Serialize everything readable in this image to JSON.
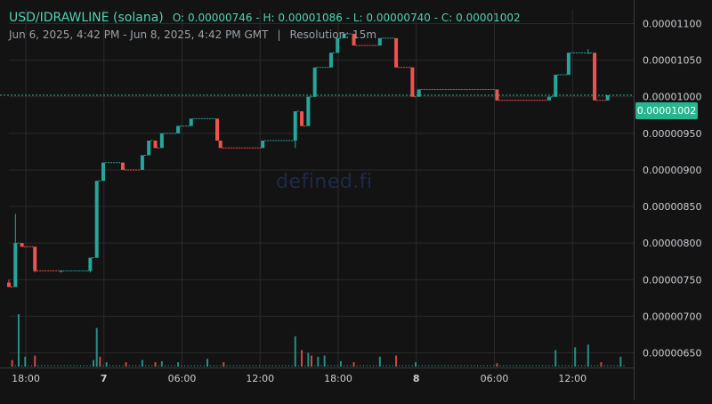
{
  "header": {
    "pair": "USD/IDRAWLINE (solana)",
    "ohlc": "O: 0.00000746 - H: 0.00001086 - L: 0.00000740 - C: 0.00001002",
    "range": "Jun 6, 2025, 4:42 PM - Jun 8, 2025, 4:42 PM GMT",
    "separator": "|",
    "resolution": "Resolution: 15m"
  },
  "watermark": "defined.fi",
  "colors": {
    "background": "#131313",
    "grid": "#2a2a2a",
    "up": "#26a69a",
    "down": "#ef5350",
    "price_line": "#26b58f",
    "axis_text": "#c9ccd1"
  },
  "chart_data": {
    "type": "candlestick",
    "y_axis": {
      "ticks": [
        6.5e-06,
        7e-06,
        7.5e-06,
        8e-06,
        8.5e-06,
        9e-06,
        9.5e-06,
        1e-05,
        1.05e-05,
        1.1e-05
      ],
      "tick_labels": [
        "0.00000650",
        "0.00000700",
        "0.00000750",
        "0.00000800",
        "0.00000850",
        "0.00000900",
        "0.00000950",
        "0.00001000",
        "0.00001050",
        "0.00001100"
      ],
      "range": [
        6.3e-06,
        1.12e-05
      ],
      "current_price": 1.002e-05,
      "current_price_label": "0.00001002"
    },
    "x_axis": {
      "tick_labels": [
        "18:00",
        "7",
        "06:00",
        "12:00",
        "18:00",
        "8",
        "06:00",
        "12:00"
      ],
      "tick_hours": [
        1.3,
        7.3,
        13.3,
        19.3,
        25.3,
        31.3,
        37.3,
        43.3
      ],
      "bold_labels": [
        "7",
        "8"
      ],
      "hour_range": [
        0,
        48
      ]
    },
    "candles": [
      {
        "t": 0.0,
        "o": 7.46e-06,
        "c": 7.4e-06,
        "h": 7.5e-06,
        "l": 7.4e-06
      },
      {
        "t": 0.5,
        "o": 7.4e-06,
        "c": 8e-06,
        "h": 8.4e-06,
        "l": 7.4e-06
      },
      {
        "t": 1.0,
        "o": 8e-06,
        "c": 7.95e-06,
        "h": 8e-06,
        "l": 7.95e-06
      },
      {
        "t": 2.0,
        "o": 7.95e-06,
        "c": 7.62e-06,
        "h": 7.95e-06,
        "l": 7.6e-06
      },
      {
        "t": 4.0,
        "o": 7.62e-06,
        "c": 7.62e-06,
        "h": 7.63e-06,
        "l": 7.6e-06
      },
      {
        "t": 6.25,
        "o": 7.62e-06,
        "c": 7.8e-06,
        "h": 7.8e-06,
        "l": 7.6e-06
      },
      {
        "t": 6.75,
        "o": 7.8e-06,
        "c": 8.85e-06,
        "h": 8.85e-06,
        "l": 7.8e-06
      },
      {
        "t": 7.25,
        "o": 8.85e-06,
        "c": 9.1e-06,
        "h": 9.1e-06,
        "l": 8.85e-06
      },
      {
        "t": 8.75,
        "o": 9.1e-06,
        "c": 9e-06,
        "h": 9.1e-06,
        "l": 9e-06
      },
      {
        "t": 10.25,
        "o": 9e-06,
        "c": 9.2e-06,
        "h": 9.2e-06,
        "l": 9e-06
      },
      {
        "t": 10.75,
        "o": 9.2e-06,
        "c": 9.4e-06,
        "h": 9.4e-06,
        "l": 9.2e-06
      },
      {
        "t": 11.25,
        "o": 9.4e-06,
        "c": 9.3e-06,
        "h": 9.4e-06,
        "l": 9.3e-06
      },
      {
        "t": 11.75,
        "o": 9.3e-06,
        "c": 9.5e-06,
        "h": 9.5e-06,
        "l": 9.3e-06
      },
      {
        "t": 13.0,
        "o": 9.5e-06,
        "c": 9.6e-06,
        "h": 9.6e-06,
        "l": 9.5e-06
      },
      {
        "t": 14.0,
        "o": 9.6e-06,
        "c": 9.7e-06,
        "h": 9.7e-06,
        "l": 9.6e-06
      },
      {
        "t": 16.0,
        "o": 9.7e-06,
        "c": 9.4e-06,
        "h": 9.7e-06,
        "l": 9.4e-06
      },
      {
        "t": 16.25,
        "o": 9.4e-06,
        "c": 9.3e-06,
        "h": 9.4e-06,
        "l": 9.3e-06
      },
      {
        "t": 19.5,
        "o": 9.3e-06,
        "c": 9.4e-06,
        "h": 9.4e-06,
        "l": 9.3e-06
      },
      {
        "t": 22.0,
        "o": 9.4e-06,
        "c": 9.8e-06,
        "h": 9.8e-06,
        "l": 9.3e-06
      },
      {
        "t": 22.5,
        "o": 9.8e-06,
        "c": 9.6e-06,
        "h": 9.8e-06,
        "l": 9.6e-06
      },
      {
        "t": 23.0,
        "o": 9.6e-06,
        "c": 1e-05,
        "h": 1e-05,
        "l": 9.6e-06
      },
      {
        "t": 23.5,
        "o": 1e-05,
        "c": 1.04e-05,
        "h": 1.04e-05,
        "l": 1e-05
      },
      {
        "t": 24.75,
        "o": 1.04e-05,
        "c": 1.06e-05,
        "h": 1.06e-05,
        "l": 1.04e-05
      },
      {
        "t": 25.25,
        "o": 1.06e-05,
        "c": 1.08e-05,
        "h": 1.08e-05,
        "l": 1.06e-05
      },
      {
        "t": 25.75,
        "o": 1.08e-05,
        "c": 1.086e-05,
        "h": 1.086e-05,
        "l": 1.08e-05
      },
      {
        "t": 26.5,
        "o": 1.086e-05,
        "c": 1.07e-05,
        "h": 1.086e-05,
        "l": 1.07e-05
      },
      {
        "t": 28.5,
        "o": 1.07e-05,
        "c": 1.08e-05,
        "h": 1.08e-05,
        "l": 1.07e-05
      },
      {
        "t": 29.75,
        "o": 1.08e-05,
        "c": 1.04e-05,
        "h": 1.08e-05,
        "l": 1.04e-05
      },
      {
        "t": 31.0,
        "o": 1.04e-05,
        "c": 1e-05,
        "h": 1.04e-05,
        "l": 1e-05
      },
      {
        "t": 31.5,
        "o": 1e-05,
        "c": 1.01e-05,
        "h": 1.01e-05,
        "l": 1e-05
      },
      {
        "t": 37.5,
        "o": 1.01e-05,
        "c": 9.95e-06,
        "h": 1.01e-05,
        "l": 9.95e-06
      },
      {
        "t": 41.5,
        "o": 9.95e-06,
        "c": 1e-05,
        "h": 1e-05,
        "l": 9.95e-06
      },
      {
        "t": 42.0,
        "o": 1e-05,
        "c": 1.03e-05,
        "h": 1.03e-05,
        "l": 1e-05
      },
      {
        "t": 43.0,
        "o": 1.03e-05,
        "c": 1.06e-05,
        "h": 1.06e-05,
        "l": 1.03e-05
      },
      {
        "t": 44.5,
        "o": 1.06e-05,
        "c": 1.06e-05,
        "h": 1.065e-05,
        "l": 1.06e-05
      },
      {
        "t": 45.0,
        "o": 1.06e-05,
        "c": 9.95e-06,
        "h": 1.06e-05,
        "l": 9.95e-06
      },
      {
        "t": 46.0,
        "o": 9.95e-06,
        "c": 1.002e-05,
        "h": 1.002e-05,
        "l": 9.95e-06
      }
    ],
    "volume": [
      {
        "t": 0.25,
        "v": 0.12,
        "d": "down"
      },
      {
        "t": 0.75,
        "v": 0.95,
        "d": "up"
      },
      {
        "t": 1.25,
        "v": 0.18,
        "d": "up"
      },
      {
        "t": 2.0,
        "v": 0.2,
        "d": "down"
      },
      {
        "t": 6.5,
        "v": 0.12,
        "d": "up"
      },
      {
        "t": 6.75,
        "v": 0.7,
        "d": "up"
      },
      {
        "t": 7.0,
        "v": 0.18,
        "d": "down"
      },
      {
        "t": 7.5,
        "v": 0.08,
        "d": "up"
      },
      {
        "t": 9.0,
        "v": 0.08,
        "d": "down"
      },
      {
        "t": 10.25,
        "v": 0.12,
        "d": "up"
      },
      {
        "t": 11.25,
        "v": 0.08,
        "d": "down"
      },
      {
        "t": 11.75,
        "v": 0.1,
        "d": "up"
      },
      {
        "t": 13.0,
        "v": 0.08,
        "d": "up"
      },
      {
        "t": 15.25,
        "v": 0.14,
        "d": "up"
      },
      {
        "t": 16.5,
        "v": 0.08,
        "d": "down"
      },
      {
        "t": 22.0,
        "v": 0.55,
        "d": "up"
      },
      {
        "t": 22.5,
        "v": 0.3,
        "d": "down"
      },
      {
        "t": 23.0,
        "v": 0.25,
        "d": "up"
      },
      {
        "t": 23.25,
        "v": 0.2,
        "d": "down"
      },
      {
        "t": 23.75,
        "v": 0.18,
        "d": "up"
      },
      {
        "t": 24.25,
        "v": 0.2,
        "d": "up"
      },
      {
        "t": 25.5,
        "v": 0.1,
        "d": "up"
      },
      {
        "t": 26.5,
        "v": 0.08,
        "d": "down"
      },
      {
        "t": 28.5,
        "v": 0.18,
        "d": "up"
      },
      {
        "t": 29.75,
        "v": 0.2,
        "d": "down"
      },
      {
        "t": 31.25,
        "v": 0.08,
        "d": "up"
      },
      {
        "t": 37.5,
        "v": 0.06,
        "d": "down"
      },
      {
        "t": 42.0,
        "v": 0.3,
        "d": "up"
      },
      {
        "t": 43.5,
        "v": 0.35,
        "d": "up"
      },
      {
        "t": 44.5,
        "v": 0.4,
        "d": "up"
      },
      {
        "t": 45.5,
        "v": 0.08,
        "d": "down"
      },
      {
        "t": 47.0,
        "v": 0.18,
        "d": "up"
      }
    ]
  }
}
